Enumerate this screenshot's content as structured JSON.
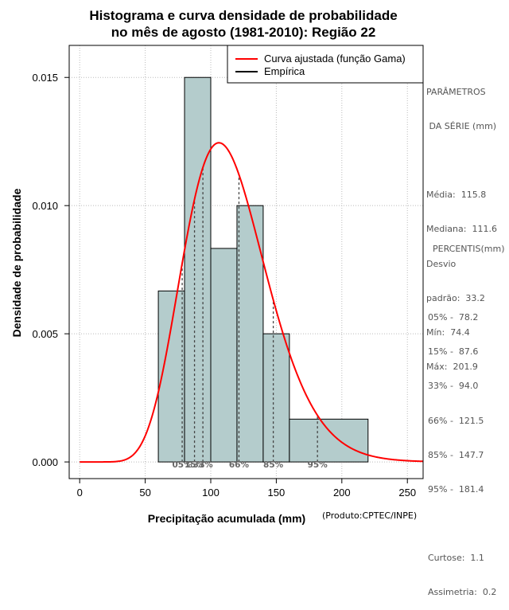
{
  "chart_data": {
    "type": "bar",
    "title_line1": "Histograma e curva densidade de probabilidade",
    "title_line2": "no mês de agosto (1981-2010): Região 22",
    "xlabel": "Precipitação acumulada (mm)",
    "ylabel": "Densidade de probabilidade",
    "credit": "(Produto:CPTEC/INPE)",
    "xlim": [
      -8,
      262
    ],
    "ylim": [
      -0.00065,
      0.01625
    ],
    "x_ticks": [
      0,
      50,
      100,
      150,
      200,
      250
    ],
    "x_tick_labels": [
      "0",
      "50",
      "100",
      "150",
      "200",
      "250"
    ],
    "y_ticks": [
      0.0,
      0.005,
      0.01,
      0.015
    ],
    "y_tick_labels": [
      "0.000",
      "0.005",
      "0.010",
      "0.015"
    ],
    "grid": true,
    "bins": [
      {
        "start": 60,
        "end": 80,
        "density": 0.00667
      },
      {
        "start": 80,
        "end": 100,
        "density": 0.015
      },
      {
        "start": 100,
        "end": 120,
        "density": 0.00833
      },
      {
        "start": 120,
        "end": 140,
        "density": 0.01
      },
      {
        "start": 140,
        "end": 160,
        "density": 0.005
      },
      {
        "start": 160,
        "end": 220,
        "density": 0.00167
      }
    ],
    "gamma_curve": {
      "shape": 12.16,
      "scale": 9.52,
      "x_range": [
        0,
        262
      ]
    },
    "percentile_lines": [
      {
        "label": "05%",
        "value": 78.2
      },
      {
        "label": "15%",
        "value": 87.6
      },
      {
        "label": "33%",
        "value": 94.0
      },
      {
        "label": "66%",
        "value": 121.5
      },
      {
        "label": "85%",
        "value": 147.7
      },
      {
        "label": "95%",
        "value": 181.4
      }
    ],
    "legend": {
      "position": "top-right",
      "entries": [
        {
          "label": "Curva ajustada (função Gama)",
          "color": "#ff0000"
        },
        {
          "label": "Empírica",
          "color": "#000000"
        }
      ]
    },
    "colors": {
      "bar_fill": "#b4cccc",
      "curve": "#ff0000",
      "grid": "#bbbbbb",
      "side_text": "#555555"
    }
  },
  "side_panel": {
    "params_title_1": "PARÂMETROS",
    "params_title_2": " DA SÉRIE (mm)",
    "stats": [
      "Média:  115.8",
      "Mediana:  111.6",
      "Desvio",
      "padrão:  33.2",
      "Mín:  74.4",
      "Máx:  201.9"
    ],
    "percentis_title": "PERCENTIS(mm)",
    "percentis": [
      "05% -  78.2",
      "15% -  87.6",
      "33% -  94.0",
      "66% -  121.5",
      "85% -  147.7",
      "95% -  181.4"
    ],
    "extra": [
      "Curtose:  1.1",
      "Assimetria:  0.2"
    ]
  }
}
